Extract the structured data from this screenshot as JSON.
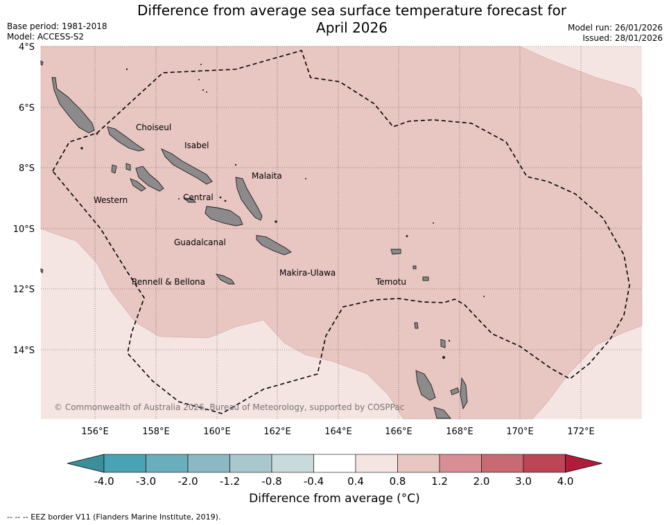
{
  "title_line1": "Difference from average sea surface temperature forecast for",
  "title_line2": "April 2026",
  "base_period": "Base period: 1981-2018",
  "model": "Model: ACCESS-S2",
  "model_run": "Model run: 26/01/2026",
  "issued": "Issued: 28/01/2026",
  "lat_labels": [
    "4°S",
    "6°S",
    "8°S",
    "10°S",
    "12°S",
    "14°S"
  ],
  "lon_labels": [
    "156°E",
    "158°E",
    "160°E",
    "162°E",
    "164°E",
    "166°E",
    "168°E",
    "170°E",
    "172°E"
  ],
  "provinces": [
    "Choiseul",
    "Isabel",
    "Malaita",
    "Western",
    "Central",
    "Guadalcanal",
    "Makira-Ulawa",
    "Rennell & Bellona",
    "Temotu"
  ],
  "copyright": "© Commonwealth of Australia 2026, Bureau of Meteorology, supported by COSPPac",
  "colorbar": {
    "title": "Difference from average (°C)",
    "ticks": [
      "-4.0",
      "-3.0",
      "-2.0",
      "-1.2",
      "-0.8",
      "-0.4",
      "0.4",
      "0.8",
      "1.2",
      "2.0",
      "3.0",
      "4.0"
    ],
    "colors": [
      "#3a8f9b",
      "#4aa3b3",
      "#6aaebe",
      "#8ab9c4",
      "#a9c8cd",
      "#c9dadd",
      "#ffffff",
      "#f4e5e3",
      "#e8c6c2",
      "#d88e94",
      "#c86a74",
      "#be4555",
      "#b01c3a"
    ]
  },
  "footnote": "--  --  -- EEZ border V11 (Flanders Marine Institute, 2019).",
  "colors": {
    "anomaly_08_12": "#e8c6c2",
    "anomaly_04_08": "#f4e5e3",
    "land": "#8c8a8a"
  }
}
